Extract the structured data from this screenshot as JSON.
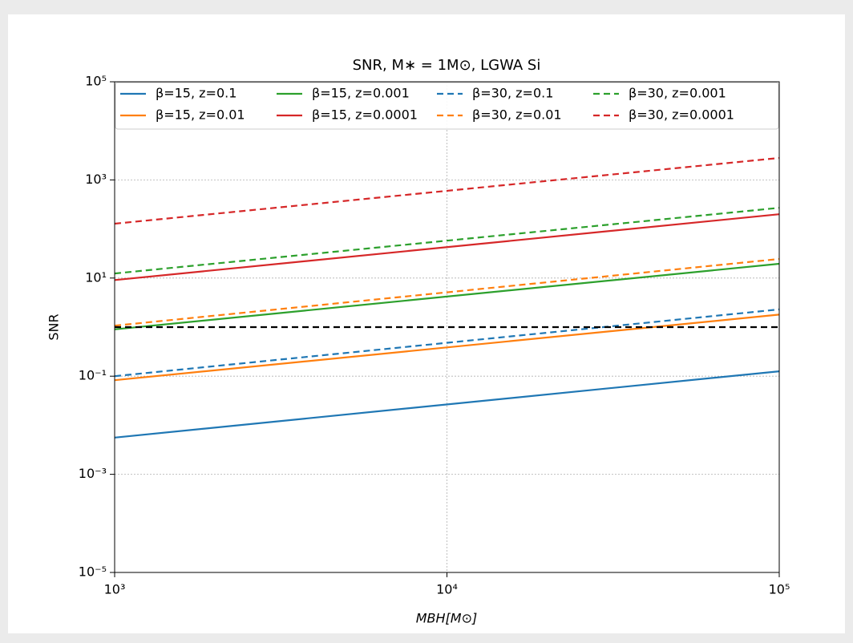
{
  "chart_data": {
    "type": "line",
    "title": "SNR, M∗ = 1M⊙, LGWA Si",
    "xlabel": "MBH[M⊙]",
    "ylabel": "SNR",
    "log_x": true,
    "log_y": true,
    "grid": true,
    "legend": "upper center",
    "legend_columns": 4,
    "xlim": [
      1000,
      100000
    ],
    "xticks": [
      {
        "value": 1000,
        "label": "10³"
      },
      {
        "value": 10000,
        "label": "10⁴"
      },
      {
        "value": 100000,
        "label": "10⁵"
      }
    ],
    "ylim": [
      1e-05,
      100000
    ],
    "yticks": [
      {
        "value": 1e-05,
        "label": "10⁻⁵"
      },
      {
        "value": 0.001,
        "label": "10⁻³"
      },
      {
        "value": 0.1,
        "label": "10⁻¹"
      },
      {
        "value": 10,
        "label": "10¹"
      },
      {
        "value": 1000,
        "label": "10³"
      },
      {
        "value": 100000,
        "label": "10⁵"
      }
    ],
    "x": [
      1000,
      100000
    ],
    "series": [
      {
        "name": "β=15, z=0.1",
        "color": "#1f77b4",
        "dash": false,
        "values": [
          0.0056,
          0.126
        ]
      },
      {
        "name": "β=15, z=0.01",
        "color": "#ff7f0e",
        "dash": false,
        "values": [
          0.083,
          1.8
        ]
      },
      {
        "name": "β=15, z=0.001",
        "color": "#2ca02c",
        "dash": false,
        "values": [
          0.9,
          19.5
        ]
      },
      {
        "name": "β=15, z=0.0001",
        "color": "#d62728",
        "dash": false,
        "values": [
          9.1,
          200
        ]
      },
      {
        "name": "β=30, z=0.1",
        "color": "#1f77b4",
        "dash": true,
        "values": [
          0.1,
          2.3
        ]
      },
      {
        "name": "β=30, z=0.01",
        "color": "#ff7f0e",
        "dash": true,
        "values": [
          1.07,
          24.5
        ]
      },
      {
        "name": "β=30, z=0.001",
        "color": "#2ca02c",
        "dash": true,
        "values": [
          12.4,
          270
        ]
      },
      {
        "name": "β=30, z=0.0001",
        "color": "#d62728",
        "dash": true,
        "values": [
          128,
          2800
        ]
      },
      {
        "color": "#000000",
        "dash": true,
        "values": [
          1,
          1
        ]
      }
    ]
  }
}
